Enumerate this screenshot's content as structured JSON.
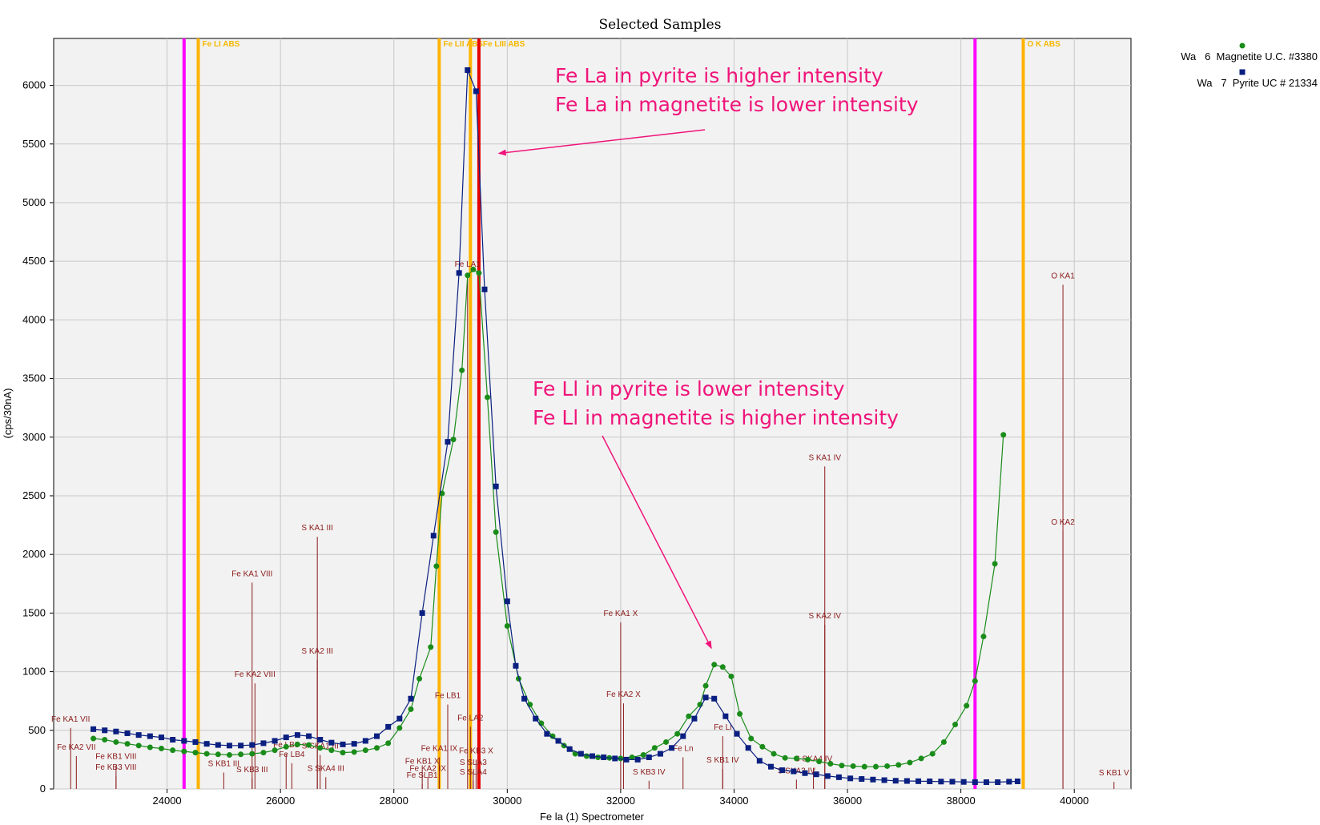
{
  "window": {
    "title": "Selected Samples"
  },
  "chart_data": {
    "type": "scatter",
    "title": "Selected Samples",
    "xlabel": "Fe la (1) Spectrometer",
    "ylabel": "(cps/30nA)",
    "xlim": [
      22000,
      41000
    ],
    "ylim": [
      0,
      6400
    ],
    "xticks": [
      24000,
      26000,
      28000,
      30000,
      32000,
      34000,
      36000,
      38000,
      40000
    ],
    "yticks": [
      0,
      500,
      1000,
      1500,
      2000,
      2500,
      3000,
      3500,
      4000,
      4500,
      5000,
      5500,
      6000
    ],
    "grid": true,
    "legend_position": "top-right",
    "series": [
      {
        "name": "Wa   6  Magnetite U.C. #3380",
        "color": "#1a8c1a",
        "marker": "circle",
        "points": [
          [
            22700,
            430
          ],
          [
            22900,
            420
          ],
          [
            23100,
            400
          ],
          [
            23300,
            385
          ],
          [
            23500,
            370
          ],
          [
            23700,
            355
          ],
          [
            23900,
            345
          ],
          [
            24100,
            330
          ],
          [
            24300,
            320
          ],
          [
            24500,
            310
          ],
          [
            24700,
            300
          ],
          [
            24900,
            295
          ],
          [
            25100,
            290
          ],
          [
            25300,
            295
          ],
          [
            25500,
            300
          ],
          [
            25700,
            310
          ],
          [
            25900,
            330
          ],
          [
            26100,
            360
          ],
          [
            26300,
            380
          ],
          [
            26500,
            375
          ],
          [
            26700,
            350
          ],
          [
            26900,
            330
          ],
          [
            27100,
            310
          ],
          [
            27300,
            315
          ],
          [
            27500,
            330
          ],
          [
            27700,
            350
          ],
          [
            27900,
            390
          ],
          [
            28100,
            520
          ],
          [
            28300,
            680
          ],
          [
            28450,
            940
          ],
          [
            28650,
            1210
          ],
          [
            28750,
            1900
          ],
          [
            28850,
            2520
          ],
          [
            29050,
            2980
          ],
          [
            29200,
            3570
          ],
          [
            29300,
            4380
          ],
          [
            29400,
            4430
          ],
          [
            29500,
            4400
          ],
          [
            29650,
            3340
          ],
          [
            29800,
            2190
          ],
          [
            30000,
            1390
          ],
          [
            30200,
            940
          ],
          [
            30400,
            720
          ],
          [
            30600,
            560
          ],
          [
            30800,
            450
          ],
          [
            31000,
            370
          ],
          [
            31200,
            300
          ],
          [
            31400,
            280
          ],
          [
            31600,
            270
          ],
          [
            31800,
            265
          ],
          [
            32000,
            260
          ],
          [
            32200,
            270
          ],
          [
            32400,
            290
          ],
          [
            32600,
            350
          ],
          [
            32800,
            400
          ],
          [
            33000,
            470
          ],
          [
            33200,
            620
          ],
          [
            33400,
            720
          ],
          [
            33500,
            880
          ],
          [
            33650,
            1060
          ],
          [
            33800,
            1040
          ],
          [
            33950,
            960
          ],
          [
            34100,
            640
          ],
          [
            34300,
            430
          ],
          [
            34500,
            360
          ],
          [
            34700,
            300
          ],
          [
            34900,
            265
          ],
          [
            35100,
            260
          ],
          [
            35300,
            250
          ],
          [
            35500,
            235
          ],
          [
            35700,
            215
          ],
          [
            35900,
            200
          ],
          [
            36100,
            195
          ],
          [
            36300,
            190
          ],
          [
            36500,
            190
          ],
          [
            36700,
            195
          ],
          [
            36900,
            205
          ],
          [
            37100,
            225
          ],
          [
            37300,
            260
          ],
          [
            37500,
            300
          ],
          [
            37700,
            400
          ],
          [
            37900,
            550
          ],
          [
            38100,
            710
          ],
          [
            38250,
            920
          ],
          [
            38400,
            1300
          ],
          [
            38600,
            1920
          ],
          [
            38750,
            3020
          ]
        ]
      },
      {
        "name": "Wa   7  Pyrite UC # 21334",
        "color": "#0a1f80",
        "marker": "square",
        "points": [
          [
            22700,
            510
          ],
          [
            22900,
            500
          ],
          [
            23100,
            490
          ],
          [
            23300,
            475
          ],
          [
            23500,
            460
          ],
          [
            23700,
            450
          ],
          [
            23900,
            440
          ],
          [
            24100,
            420
          ],
          [
            24300,
            410
          ],
          [
            24500,
            400
          ],
          [
            24700,
            385
          ],
          [
            24900,
            375
          ],
          [
            25100,
            370
          ],
          [
            25300,
            370
          ],
          [
            25500,
            375
          ],
          [
            25700,
            390
          ],
          [
            25900,
            410
          ],
          [
            26100,
            440
          ],
          [
            26300,
            460
          ],
          [
            26500,
            450
          ],
          [
            26700,
            420
          ],
          [
            26900,
            395
          ],
          [
            27100,
            380
          ],
          [
            27300,
            385
          ],
          [
            27500,
            410
          ],
          [
            27700,
            450
          ],
          [
            27900,
            530
          ],
          [
            28100,
            600
          ],
          [
            28300,
            770
          ],
          [
            28500,
            1500
          ],
          [
            28700,
            2160
          ],
          [
            28950,
            2960
          ],
          [
            29150,
            4400
          ],
          [
            29300,
            6130
          ],
          [
            29450,
            5950
          ],
          [
            29600,
            4260
          ],
          [
            29800,
            2580
          ],
          [
            30000,
            1600
          ],
          [
            30150,
            1050
          ],
          [
            30300,
            770
          ],
          [
            30500,
            600
          ],
          [
            30700,
            470
          ],
          [
            30900,
            410
          ],
          [
            31100,
            340
          ],
          [
            31300,
            300
          ],
          [
            31500,
            280
          ],
          [
            31700,
            270
          ],
          [
            31900,
            260
          ],
          [
            32100,
            250
          ],
          [
            32300,
            250
          ],
          [
            32500,
            270
          ],
          [
            32700,
            300
          ],
          [
            32900,
            350
          ],
          [
            33100,
            450
          ],
          [
            33300,
            600
          ],
          [
            33500,
            780
          ],
          [
            33650,
            770
          ],
          [
            33850,
            620
          ],
          [
            34050,
            470
          ],
          [
            34250,
            350
          ],
          [
            34450,
            240
          ],
          [
            34650,
            190
          ],
          [
            34850,
            160
          ],
          [
            35050,
            150
          ],
          [
            35250,
            135
          ],
          [
            35450,
            125
          ],
          [
            35650,
            110
          ],
          [
            35850,
            100
          ],
          [
            36050,
            90
          ],
          [
            36250,
            85
          ],
          [
            36450,
            80
          ],
          [
            36650,
            75
          ],
          [
            36850,
            70
          ],
          [
            37050,
            68
          ],
          [
            37250,
            66
          ],
          [
            37450,
            65
          ],
          [
            37650,
            63
          ],
          [
            37850,
            62
          ],
          [
            38050,
            60
          ],
          [
            38250,
            58
          ],
          [
            38450,
            58
          ],
          [
            38650,
            58
          ],
          [
            38850,
            62
          ],
          [
            39000,
            65
          ]
        ]
      }
    ],
    "edge_lines": [
      {
        "x": 24300,
        "color": "#ff00ff",
        "label": ""
      },
      {
        "x": 24550,
        "color": "#ffb400",
        "label": "Fe LI  ABS"
      },
      {
        "x": 28800,
        "color": "#ffb400",
        "label": "Fe LII  ABS"
      },
      {
        "x": 29350,
        "color": "#ffb400",
        "label": ""
      },
      {
        "x": 29500,
        "color": "#e60000",
        "label": "Fe LIII  ABS"
      },
      {
        "x": 38250,
        "color": "#ff00ff",
        "label": ""
      },
      {
        "x": 39100,
        "color": "#ffb400",
        "label": "O K  ABS"
      }
    ],
    "kline_markers": [
      {
        "x": 22300,
        "y": 520,
        "label": "Fe KA1 VII"
      },
      {
        "x": 22400,
        "y": 280,
        "label": "Fe KA2 VII"
      },
      {
        "x": 23100,
        "y": 200,
        "label": "Fe KB1 VIII"
      },
      {
        "x": 23100,
        "y": 110,
        "label": "Fe KB3 VIII"
      },
      {
        "x": 25500,
        "y": 1760,
        "label": "Fe KA1 VIII"
      },
      {
        "x": 25550,
        "y": 900,
        "label": "Fe KA2 VIII"
      },
      {
        "x": 25000,
        "y": 140,
        "label": "S KB1 III"
      },
      {
        "x": 25500,
        "y": 90,
        "label": "S KB3 III"
      },
      {
        "x": 26650,
        "y": 2150,
        "label": "S KA1 III"
      },
      {
        "x": 26650,
        "y": 1100,
        "label": "S KA2 III"
      },
      {
        "x": 26200,
        "y": 220,
        "label": "Fe LB4"
      },
      {
        "x": 26100,
        "y": 300,
        "label": "Fe LB3"
      },
      {
        "x": 26700,
        "y": 290,
        "label": "S SKA1 III"
      },
      {
        "x": 26800,
        "y": 100,
        "label": "S SKA4 III"
      },
      {
        "x": 28950,
        "y": 720,
        "label": "Fe LB1"
      },
      {
        "x": 28800,
        "y": 270,
        "label": "Fe KA1 IX"
      },
      {
        "x": 28500,
        "y": 160,
        "label": "Fe KB1 X"
      },
      {
        "x": 28600,
        "y": 100,
        "label": "Fe KA2 IX"
      },
      {
        "x": 28500,
        "y": 40,
        "label": "Fe SLB1"
      },
      {
        "x": 29300,
        "y": 4400,
        "label": "Fe LA1"
      },
      {
        "x": 29350,
        "y": 530,
        "label": "Fe LA2"
      },
      {
        "x": 29450,
        "y": 250,
        "label": "Fe KB3 X"
      },
      {
        "x": 29400,
        "y": 150,
        "label": "S SLA3"
      },
      {
        "x": 29400,
        "y": 70,
        "label": "S SLA4"
      },
      {
        "x": 32000,
        "y": 1420,
        "label": "Fe KA1 X"
      },
      {
        "x": 32050,
        "y": 730,
        "label": "Fe KA2 X"
      },
      {
        "x": 33100,
        "y": 270,
        "label": "Fe Ln"
      },
      {
        "x": 32500,
        "y": 70,
        "label": "S KB3 IV"
      },
      {
        "x": 33800,
        "y": 450,
        "label": "Fe Ll"
      },
      {
        "x": 33800,
        "y": 170,
        "label": "S KB1 IV"
      },
      {
        "x": 35600,
        "y": 2750,
        "label": "S KA1 IV"
      },
      {
        "x": 35600,
        "y": 1400,
        "label": "S KA2 IV"
      },
      {
        "x": 35400,
        "y": 180,
        "label": "S SKA4 IV"
      },
      {
        "x": 35100,
        "y": 80,
        "label": "S SKA3 IV"
      },
      {
        "x": 39800,
        "y": 4300,
        "label": "O KA1"
      },
      {
        "x": 39800,
        "y": 2200,
        "label": "O KA2"
      },
      {
        "x": 40700,
        "y": 60,
        "label": "S KB1 V"
      }
    ],
    "annotations": [
      {
        "lines": [
          "Fe La in pyrite is higher intensity",
          "Fe La in magnetite is lower intensity"
        ],
        "arrow_to": [
          29850,
          5420
        ]
      },
      {
        "lines": [
          "Fe Ll in pyrite is lower intensity",
          "Fe Ll in magnetite is higher intensity"
        ],
        "arrow_to": [
          33600,
          1200
        ]
      }
    ]
  }
}
